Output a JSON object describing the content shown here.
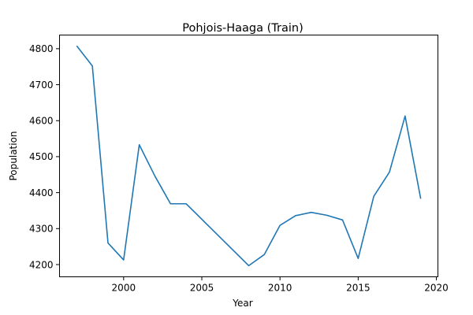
{
  "chart_data": {
    "type": "line",
    "title": "Pohjois-Haaga (Train)",
    "xlabel": "Year",
    "ylabel": "Population",
    "x": [
      1997,
      1998,
      1999,
      2000,
      2001,
      2002,
      2003,
      2004,
      2005,
      2006,
      2007,
      2008,
      2009,
      2010,
      2011,
      2012,
      2013,
      2014,
      2015,
      2016,
      2017,
      2018,
      2019
    ],
    "series": [
      {
        "values": [
          4808,
          4752,
          4260,
          4213,
          4533,
          4446,
          4369,
          4369,
          4326,
          4283,
          4240,
          4197,
          4228,
          4309,
          4336,
          4345,
          4337,
          4324,
          4217,
          4390,
          4457,
          4613,
          4383
        ],
        "color": "#1f77b4"
      }
    ],
    "xlim": [
      1995.9,
      2020.1
    ],
    "ylim": [
      4166,
      4838
    ],
    "xticks": [
      2000,
      2005,
      2010,
      2015,
      2020
    ],
    "yticks": [
      4200,
      4300,
      4400,
      4500,
      4600,
      4700,
      4800
    ],
    "grid": false
  }
}
